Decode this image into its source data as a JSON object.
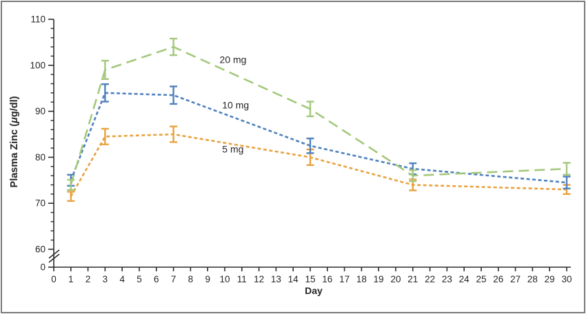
{
  "figure": {
    "frame_color": "#7b7b7b",
    "background": "#ffffff"
  },
  "chart_data": {
    "type": "line",
    "title": "",
    "xlabel": "Day",
    "ylabel": "Plasma Zinc (μg/dl)",
    "x_axis": {
      "tick_labels": [
        "0",
        "1",
        "2",
        "3",
        "4",
        "5",
        "6",
        "7",
        "8",
        "9",
        "10",
        "11",
        "12",
        "13",
        "14",
        "15",
        "16",
        "17",
        "18",
        "19",
        "20",
        "21",
        "22",
        "23",
        "24",
        "25",
        "26",
        "27",
        "28",
        "29",
        "30"
      ],
      "range": [
        0,
        30
      ]
    },
    "y_axis": {
      "major_tick_labels": [
        "60",
        "70",
        "80",
        "90",
        "100",
        "110"
      ],
      "major_ticks": [
        60,
        70,
        80,
        90,
        100,
        110
      ],
      "minor_step": 2,
      "zero_label": "0",
      "axis_break": true,
      "displayed_range": [
        60,
        110
      ]
    },
    "x": [
      1,
      3,
      7,
      15,
      21,
      30
    ],
    "series": [
      {
        "name": "5 mg",
        "color": "#e8a23e",
        "dash": "short",
        "values": [
          71.5,
          84.5,
          85,
          80,
          74,
          73
        ],
        "errors": [
          1.0,
          1.7,
          1.7,
          1.7,
          1.2,
          1.0
        ],
        "label": {
          "text": "5 mg",
          "day": 9.85,
          "value": 81.0
        }
      },
      {
        "name": "10 mg",
        "color": "#4e81bd",
        "dash": "short",
        "values": [
          75,
          94,
          93.5,
          82.5,
          77.5,
          74.5
        ],
        "errors": [
          1.2,
          1.9,
          1.9,
          1.6,
          1.2,
          1.3
        ],
        "label": {
          "text": "10 mg",
          "day": 9.85,
          "value": 90.6
        }
      },
      {
        "name": "20 mg",
        "color": "#a3c87c",
        "dash": "long",
        "values": [
          74,
          99,
          104,
          90.5,
          76,
          77.5
        ],
        "errors": [
          1.1,
          2.0,
          1.8,
          1.6,
          1.2,
          1.3
        ],
        "label": {
          "text": "20 mg",
          "day": 9.7,
          "value": 100.5
        }
      }
    ],
    "legend_position": "inline-labels",
    "grid": false
  }
}
